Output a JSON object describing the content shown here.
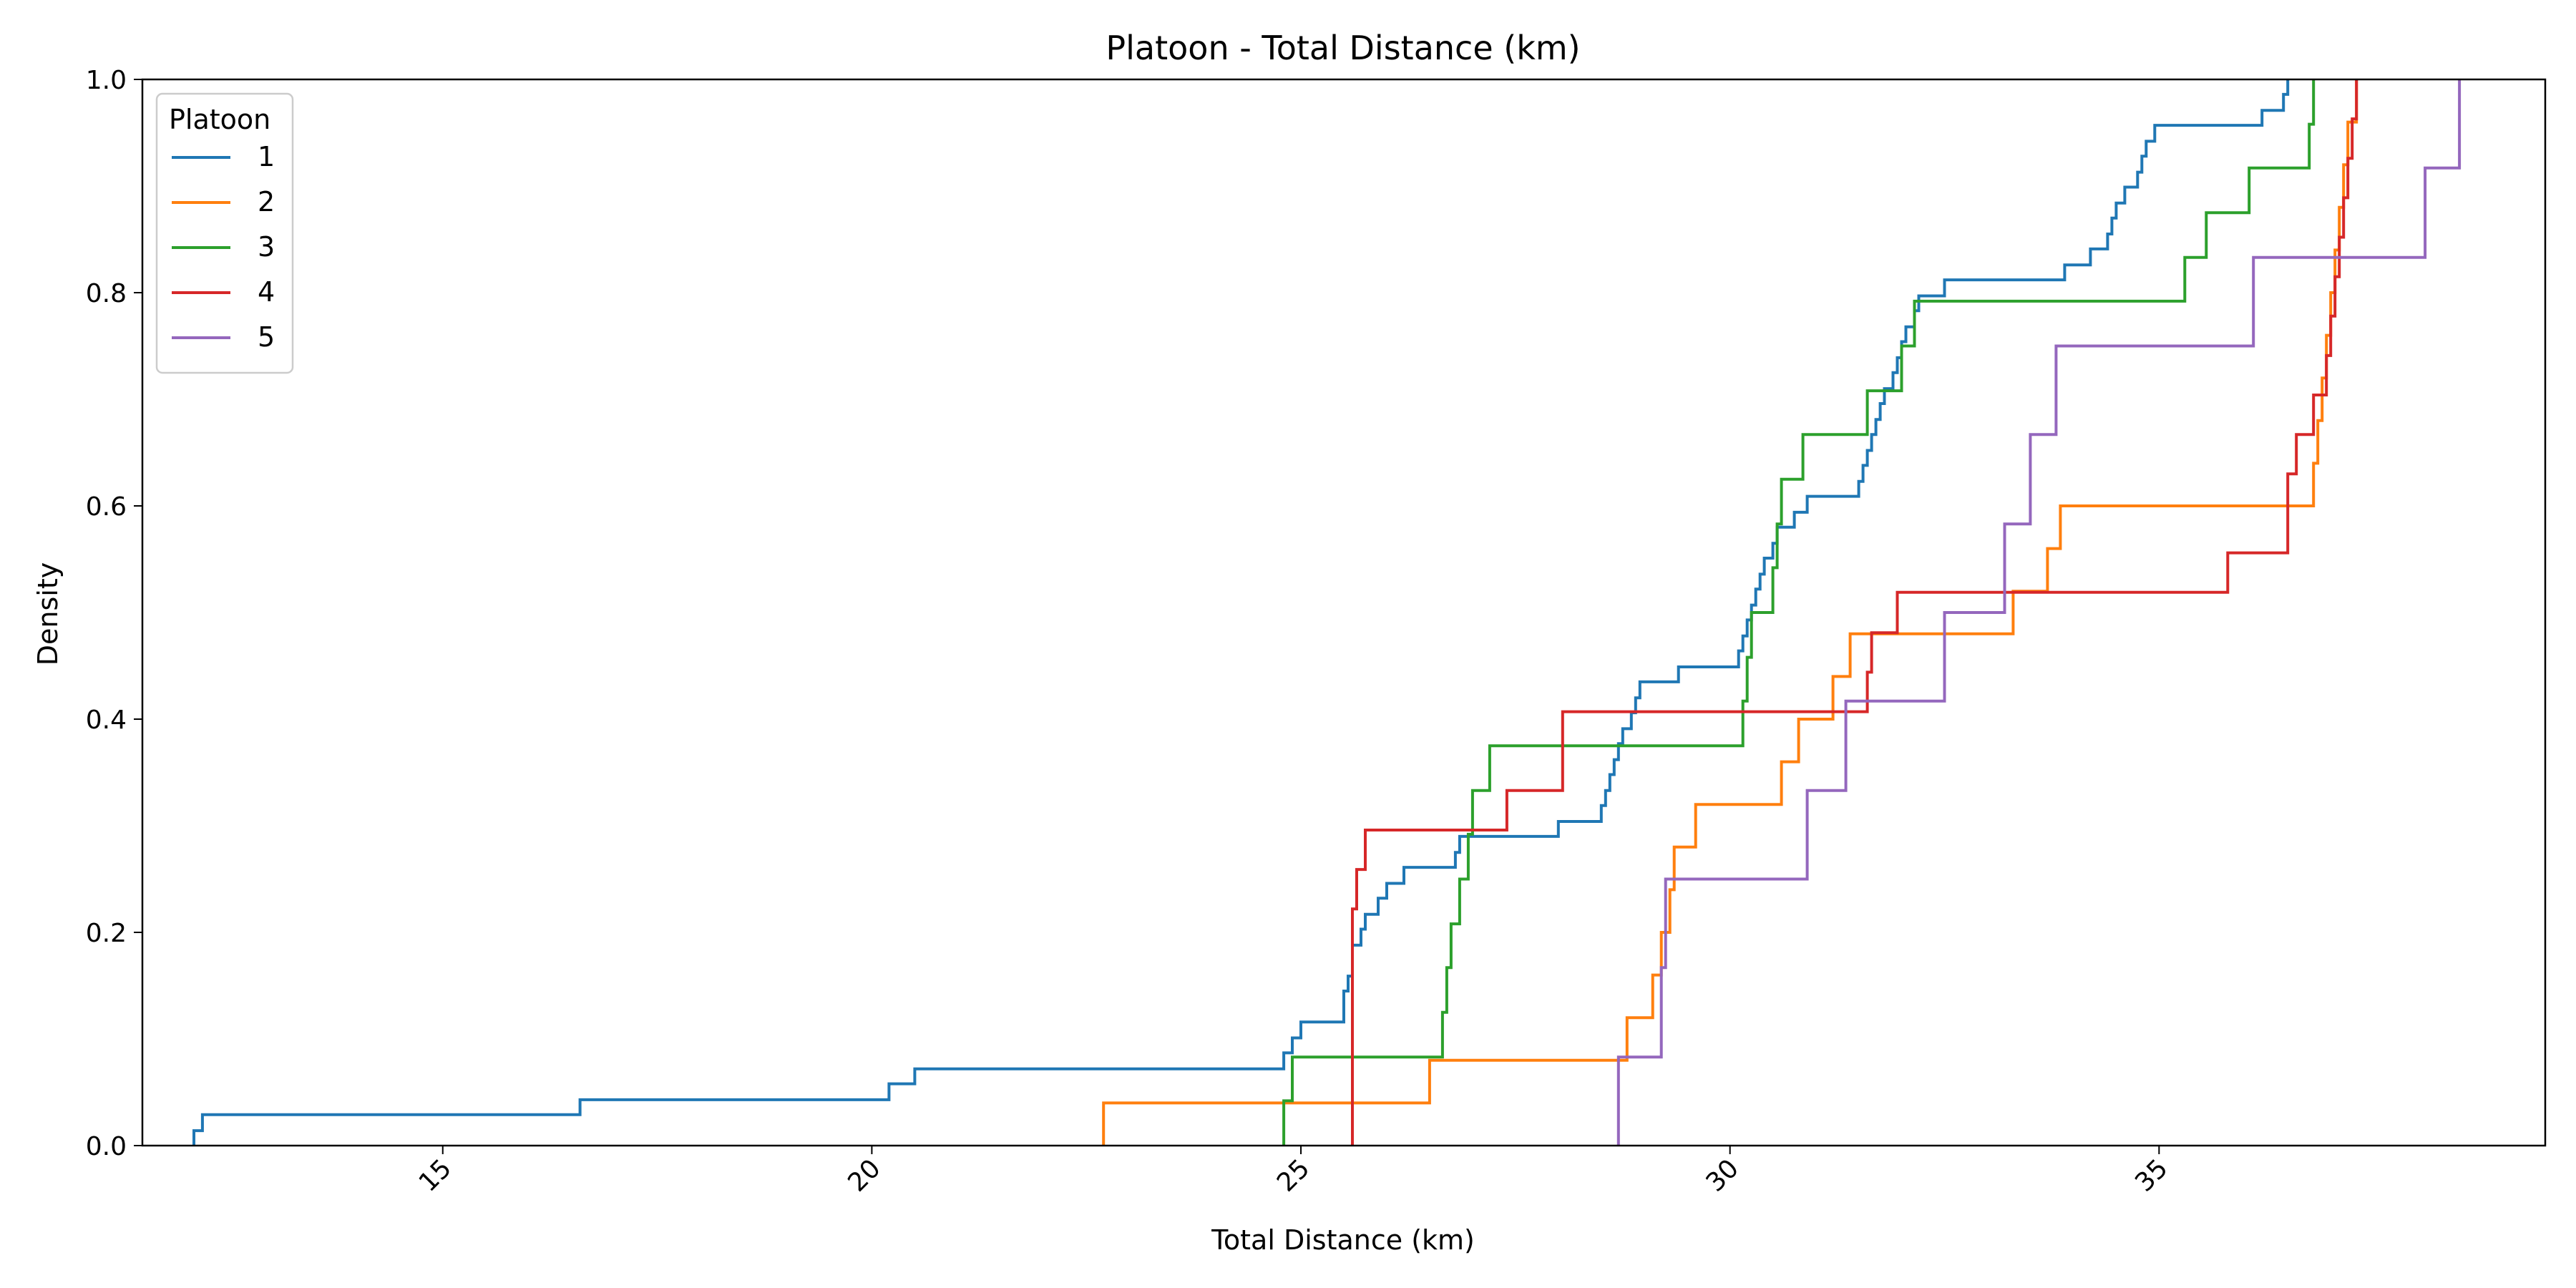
{
  "chart_data": {
    "type": "line",
    "title": "Platoon - Total Distance (km)",
    "xlabel": "Total Distance (km)",
    "ylabel": "Density",
    "xlim": [
      11.5,
      39.5
    ],
    "ylim": [
      0.0,
      1.0
    ],
    "xticks": [
      15,
      20,
      25,
      30,
      35
    ],
    "yticks": [
      0.0,
      0.2,
      0.4,
      0.6,
      0.8,
      1.0
    ],
    "xtick_labels": [
      "15",
      "20",
      "25",
      "30",
      "35"
    ],
    "ytick_labels": [
      "0.0",
      "0.2",
      "0.4",
      "0.6",
      "0.8",
      "1.0"
    ],
    "grid": false,
    "legend": {
      "title": "Platoon",
      "placement": "top-left"
    },
    "series": [
      {
        "name": "1",
        "color": "#1f77b4",
        "points": [
          [
            12.1,
            0.0
          ],
          [
            12.1,
            0.014
          ],
          [
            12.2,
            0.014
          ],
          [
            12.2,
            0.029
          ],
          [
            16.6,
            0.029
          ],
          [
            16.6,
            0.043
          ],
          [
            20.2,
            0.043
          ],
          [
            20.2,
            0.058
          ],
          [
            20.5,
            0.058
          ],
          [
            20.5,
            0.072
          ],
          [
            24.8,
            0.072
          ],
          [
            24.8,
            0.087
          ],
          [
            24.9,
            0.087
          ],
          [
            24.9,
            0.101
          ],
          [
            25.0,
            0.101
          ],
          [
            25.0,
            0.116
          ],
          [
            25.5,
            0.116
          ],
          [
            25.5,
            0.13
          ],
          [
            25.5,
            0.145
          ],
          [
            25.55,
            0.145
          ],
          [
            25.55,
            0.159
          ],
          [
            25.6,
            0.159
          ],
          [
            25.6,
            0.174
          ],
          [
            25.6,
            0.188
          ],
          [
            25.7,
            0.188
          ],
          [
            25.7,
            0.203
          ],
          [
            25.75,
            0.203
          ],
          [
            25.75,
            0.217
          ],
          [
            25.9,
            0.217
          ],
          [
            25.9,
            0.232
          ],
          [
            26.0,
            0.232
          ],
          [
            26.0,
            0.246
          ],
          [
            26.2,
            0.246
          ],
          [
            26.2,
            0.261
          ],
          [
            26.8,
            0.261
          ],
          [
            26.8,
            0.275
          ],
          [
            26.85,
            0.275
          ],
          [
            26.85,
            0.29
          ],
          [
            28.0,
            0.29
          ],
          [
            28.0,
            0.304
          ],
          [
            28.5,
            0.304
          ],
          [
            28.5,
            0.319
          ],
          [
            28.55,
            0.319
          ],
          [
            28.55,
            0.333
          ],
          [
            28.6,
            0.333
          ],
          [
            28.6,
            0.348
          ],
          [
            28.65,
            0.348
          ],
          [
            28.65,
            0.362
          ],
          [
            28.7,
            0.362
          ],
          [
            28.7,
            0.377
          ],
          [
            28.75,
            0.377
          ],
          [
            28.75,
            0.391
          ],
          [
            28.85,
            0.391
          ],
          [
            28.85,
            0.406
          ],
          [
            28.9,
            0.406
          ],
          [
            28.9,
            0.42
          ],
          [
            28.95,
            0.42
          ],
          [
            28.95,
            0.435
          ],
          [
            29.4,
            0.435
          ],
          [
            29.4,
            0.449
          ],
          [
            30.1,
            0.449
          ],
          [
            30.1,
            0.464
          ],
          [
            30.15,
            0.464
          ],
          [
            30.15,
            0.478
          ],
          [
            30.2,
            0.478
          ],
          [
            30.2,
            0.493
          ],
          [
            30.25,
            0.493
          ],
          [
            30.25,
            0.507
          ],
          [
            30.3,
            0.507
          ],
          [
            30.3,
            0.522
          ],
          [
            30.35,
            0.522
          ],
          [
            30.35,
            0.536
          ],
          [
            30.4,
            0.536
          ],
          [
            30.4,
            0.551
          ],
          [
            30.5,
            0.551
          ],
          [
            30.5,
            0.565
          ],
          [
            30.55,
            0.565
          ],
          [
            30.55,
            0.58
          ],
          [
            30.75,
            0.58
          ],
          [
            30.75,
            0.594
          ],
          [
            30.9,
            0.594
          ],
          [
            30.9,
            0.609
          ],
          [
            31.5,
            0.609
          ],
          [
            31.5,
            0.623
          ],
          [
            31.55,
            0.623
          ],
          [
            31.55,
            0.638
          ],
          [
            31.6,
            0.638
          ],
          [
            31.6,
            0.652
          ],
          [
            31.65,
            0.652
          ],
          [
            31.65,
            0.667
          ],
          [
            31.7,
            0.667
          ],
          [
            31.7,
            0.681
          ],
          [
            31.75,
            0.681
          ],
          [
            31.75,
            0.696
          ],
          [
            31.8,
            0.696
          ],
          [
            31.8,
            0.71
          ],
          [
            31.9,
            0.71
          ],
          [
            31.9,
            0.725
          ],
          [
            31.95,
            0.725
          ],
          [
            31.95,
            0.739
          ],
          [
            32.0,
            0.739
          ],
          [
            32.0,
            0.754
          ],
          [
            32.05,
            0.754
          ],
          [
            32.05,
            0.768
          ],
          [
            32.15,
            0.768
          ],
          [
            32.15,
            0.783
          ],
          [
            32.2,
            0.783
          ],
          [
            32.2,
            0.797
          ],
          [
            32.5,
            0.797
          ],
          [
            32.5,
            0.812
          ],
          [
            33.9,
            0.812
          ],
          [
            33.9,
            0.826
          ],
          [
            34.2,
            0.826
          ],
          [
            34.2,
            0.841
          ],
          [
            34.4,
            0.841
          ],
          [
            34.4,
            0.855
          ],
          [
            34.45,
            0.855
          ],
          [
            34.45,
            0.87
          ],
          [
            34.5,
            0.87
          ],
          [
            34.5,
            0.884
          ],
          [
            34.6,
            0.884
          ],
          [
            34.6,
            0.899
          ],
          [
            34.75,
            0.899
          ],
          [
            34.75,
            0.913
          ],
          [
            34.8,
            0.913
          ],
          [
            34.8,
            0.928
          ],
          [
            34.85,
            0.928
          ],
          [
            34.85,
            0.942
          ],
          [
            34.95,
            0.942
          ],
          [
            34.95,
            0.957
          ],
          [
            36.2,
            0.957
          ],
          [
            36.2,
            0.971
          ],
          [
            36.45,
            0.971
          ],
          [
            36.45,
            0.986
          ],
          [
            36.5,
            0.986
          ],
          [
            36.5,
            1.0
          ]
        ]
      },
      {
        "name": "2",
        "color": "#ff7f0e",
        "points": [
          [
            22.7,
            0.0
          ],
          [
            22.7,
            0.04
          ],
          [
            26.5,
            0.04
          ],
          [
            26.5,
            0.08
          ],
          [
            28.8,
            0.08
          ],
          [
            28.8,
            0.12
          ],
          [
            29.1,
            0.12
          ],
          [
            29.1,
            0.16
          ],
          [
            29.2,
            0.16
          ],
          [
            29.2,
            0.2
          ],
          [
            29.3,
            0.2
          ],
          [
            29.3,
            0.24
          ],
          [
            29.35,
            0.24
          ],
          [
            29.35,
            0.28
          ],
          [
            29.6,
            0.28
          ],
          [
            29.6,
            0.32
          ],
          [
            30.6,
            0.32
          ],
          [
            30.6,
            0.36
          ],
          [
            30.8,
            0.36
          ],
          [
            30.8,
            0.4
          ],
          [
            31.2,
            0.4
          ],
          [
            31.2,
            0.44
          ],
          [
            31.4,
            0.44
          ],
          [
            31.4,
            0.48
          ],
          [
            33.3,
            0.48
          ],
          [
            33.3,
            0.52
          ],
          [
            33.7,
            0.52
          ],
          [
            33.7,
            0.56
          ],
          [
            33.85,
            0.56
          ],
          [
            33.85,
            0.6
          ],
          [
            36.8,
            0.6
          ],
          [
            36.8,
            0.64
          ],
          [
            36.85,
            0.64
          ],
          [
            36.85,
            0.68
          ],
          [
            36.9,
            0.68
          ],
          [
            36.9,
            0.72
          ],
          [
            36.95,
            0.72
          ],
          [
            36.95,
            0.76
          ],
          [
            37.0,
            0.76
          ],
          [
            37.0,
            0.8
          ],
          [
            37.05,
            0.8
          ],
          [
            37.05,
            0.84
          ],
          [
            37.1,
            0.84
          ],
          [
            37.1,
            0.88
          ],
          [
            37.15,
            0.88
          ],
          [
            37.15,
            0.92
          ],
          [
            37.2,
            0.92
          ],
          [
            37.2,
            0.96
          ],
          [
            37.3,
            0.96
          ],
          [
            37.3,
            1.0
          ]
        ]
      },
      {
        "name": "3",
        "color": "#2ca02c",
        "points": [
          [
            24.8,
            0.0
          ],
          [
            24.8,
            0.042
          ],
          [
            24.9,
            0.042
          ],
          [
            24.9,
            0.083
          ],
          [
            26.65,
            0.083
          ],
          [
            26.65,
            0.125
          ],
          [
            26.7,
            0.125
          ],
          [
            26.7,
            0.167
          ],
          [
            26.75,
            0.167
          ],
          [
            26.75,
            0.208
          ],
          [
            26.85,
            0.208
          ],
          [
            26.85,
            0.25
          ],
          [
            26.95,
            0.25
          ],
          [
            26.95,
            0.292
          ],
          [
            27.0,
            0.292
          ],
          [
            27.0,
            0.333
          ],
          [
            27.2,
            0.333
          ],
          [
            27.2,
            0.375
          ],
          [
            30.15,
            0.375
          ],
          [
            30.15,
            0.417
          ],
          [
            30.2,
            0.417
          ],
          [
            30.2,
            0.458
          ],
          [
            30.25,
            0.458
          ],
          [
            30.25,
            0.5
          ],
          [
            30.5,
            0.5
          ],
          [
            30.5,
            0.542
          ],
          [
            30.55,
            0.542
          ],
          [
            30.55,
            0.583
          ],
          [
            30.6,
            0.583
          ],
          [
            30.6,
            0.625
          ],
          [
            30.85,
            0.625
          ],
          [
            30.85,
            0.667
          ],
          [
            31.6,
            0.667
          ],
          [
            31.6,
            0.708
          ],
          [
            32.0,
            0.708
          ],
          [
            32.0,
            0.75
          ],
          [
            32.15,
            0.75
          ],
          [
            32.15,
            0.792
          ],
          [
            35.3,
            0.792
          ],
          [
            35.3,
            0.833
          ],
          [
            35.55,
            0.833
          ],
          [
            35.55,
            0.875
          ],
          [
            36.05,
            0.875
          ],
          [
            36.05,
            0.917
          ],
          [
            36.75,
            0.917
          ],
          [
            36.75,
            0.958
          ],
          [
            36.8,
            0.958
          ],
          [
            36.8,
            1.0
          ]
        ]
      },
      {
        "name": "4",
        "color": "#d62728",
        "points": [
          [
            25.6,
            0.0
          ],
          [
            25.6,
            0.222
          ],
          [
            25.65,
            0.222
          ],
          [
            25.65,
            0.259
          ],
          [
            25.75,
            0.259
          ],
          [
            25.75,
            0.296
          ],
          [
            27.4,
            0.296
          ],
          [
            27.4,
            0.333
          ],
          [
            28.05,
            0.333
          ],
          [
            28.05,
            0.407
          ],
          [
            31.6,
            0.407
          ],
          [
            31.6,
            0.444
          ],
          [
            31.65,
            0.444
          ],
          [
            31.65,
            0.481
          ],
          [
            31.95,
            0.481
          ],
          [
            31.95,
            0.519
          ],
          [
            35.8,
            0.519
          ],
          [
            35.8,
            0.556
          ],
          [
            36.5,
            0.556
          ],
          [
            36.5,
            0.63
          ],
          [
            36.6,
            0.63
          ],
          [
            36.6,
            0.667
          ],
          [
            36.8,
            0.667
          ],
          [
            36.8,
            0.704
          ],
          [
            36.95,
            0.704
          ],
          [
            36.95,
            0.741
          ],
          [
            37.0,
            0.741
          ],
          [
            37.0,
            0.778
          ],
          [
            37.05,
            0.778
          ],
          [
            37.05,
            0.815
          ],
          [
            37.1,
            0.815
          ],
          [
            37.1,
            0.852
          ],
          [
            37.15,
            0.852
          ],
          [
            37.15,
            0.889
          ],
          [
            37.2,
            0.889
          ],
          [
            37.2,
            0.926
          ],
          [
            37.25,
            0.926
          ],
          [
            37.25,
            0.963
          ],
          [
            37.3,
            0.963
          ],
          [
            37.3,
            1.0
          ]
        ]
      },
      {
        "name": "5",
        "color": "#9467bd",
        "points": [
          [
            28.7,
            0.0
          ],
          [
            28.7,
            0.083
          ],
          [
            29.2,
            0.083
          ],
          [
            29.2,
            0.167
          ],
          [
            29.25,
            0.167
          ],
          [
            29.25,
            0.25
          ],
          [
            30.9,
            0.25
          ],
          [
            30.9,
            0.333
          ],
          [
            31.35,
            0.333
          ],
          [
            31.35,
            0.417
          ],
          [
            32.5,
            0.417
          ],
          [
            32.5,
            0.5
          ],
          [
            33.2,
            0.5
          ],
          [
            33.2,
            0.583
          ],
          [
            33.5,
            0.583
          ],
          [
            33.5,
            0.667
          ],
          [
            33.8,
            0.667
          ],
          [
            33.8,
            0.75
          ],
          [
            36.1,
            0.75
          ],
          [
            36.1,
            0.833
          ],
          [
            38.1,
            0.833
          ],
          [
            38.1,
            0.917
          ],
          [
            38.5,
            0.917
          ],
          [
            38.5,
            1.0
          ]
        ]
      }
    ]
  }
}
